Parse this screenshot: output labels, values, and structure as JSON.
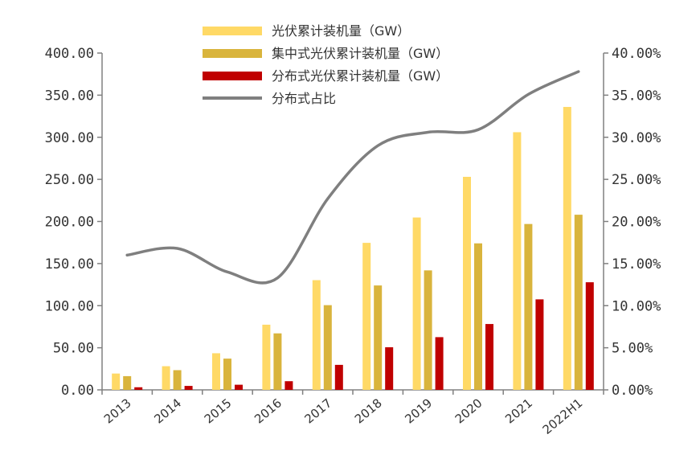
{
  "chart_data": {
    "type": "bar",
    "categories": [
      "2013",
      "2014",
      "2015",
      "2016",
      "2017",
      "2018",
      "2019",
      "2020",
      "2021",
      "2022H1"
    ],
    "series": [
      {
        "name": "光伏累计装机量（GW）",
        "kind": "bar",
        "axis": "left",
        "color": "#FFD966",
        "values": [
          19.4,
          28.1,
          43.5,
          77.4,
          130.3,
          174.6,
          204.7,
          253.0,
          306.0,
          336.0
        ]
      },
      {
        "name": "集中式光伏累计装机量（GW）",
        "kind": "bar",
        "axis": "left",
        "color": "#D9B43C",
        "values": [
          16.3,
          23.4,
          37.1,
          67.1,
          100.6,
          124.0,
          141.9,
          174.0,
          197.0,
          208.0
        ]
      },
      {
        "name": "分布式光伏累计装机量（GW）",
        "kind": "bar",
        "axis": "left",
        "color": "#C00000",
        "values": [
          3.1,
          4.7,
          6.1,
          10.3,
          29.7,
          50.6,
          62.6,
          78.2,
          107.5,
          127.8
        ]
      },
      {
        "name": "分布式占比",
        "kind": "line",
        "axis": "right",
        "color": "#7F7F7F",
        "values": [
          16.0,
          16.8,
          14.0,
          13.3,
          22.7,
          29.0,
          30.6,
          30.9,
          35.1,
          37.8
        ]
      }
    ],
    "y_left": {
      "min": 0,
      "max": 400,
      "ticks": [
        "0.00",
        "50.00",
        "100.00",
        "150.00",
        "200.00",
        "250.00",
        "300.00",
        "350.00",
        "400.00"
      ]
    },
    "y_right": {
      "min": 0,
      "max": 40,
      "ticks": [
        "0.00%",
        "5.00%",
        "10.00%",
        "15.00%",
        "20.00%",
        "25.00%",
        "30.00%",
        "35.00%",
        "40.00%"
      ]
    },
    "legend_position": "top-center",
    "grid": false
  }
}
